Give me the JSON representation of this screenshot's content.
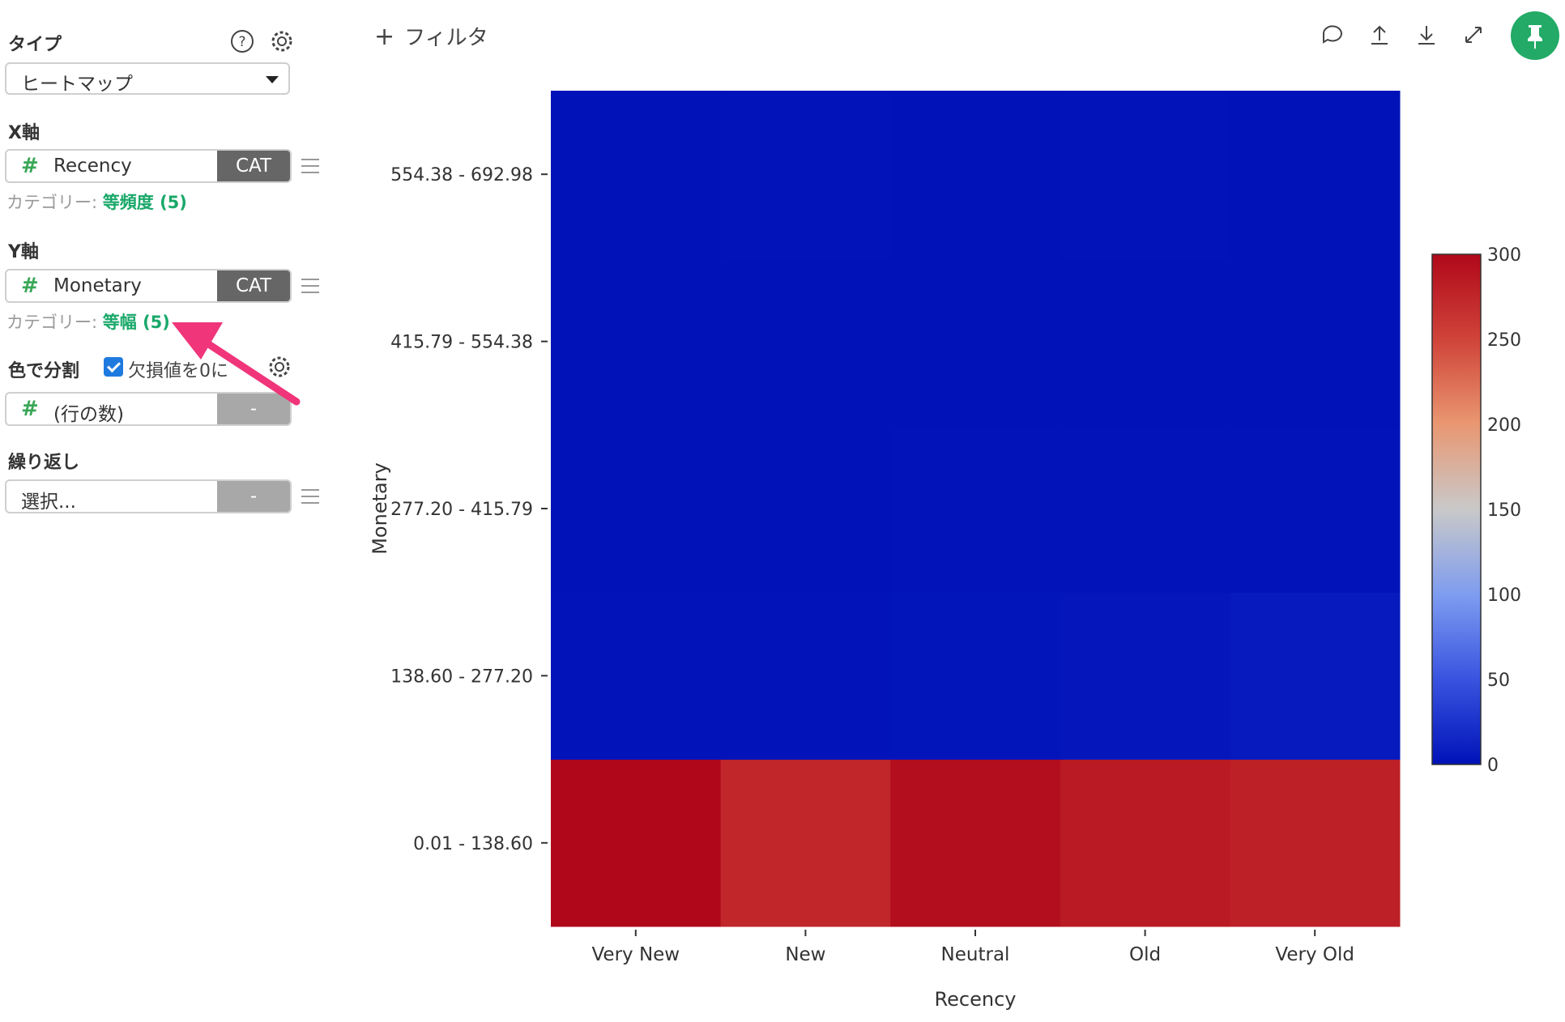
{
  "sidebar": {
    "type": {
      "label": "タイプ",
      "value": "ヒートマップ"
    },
    "x_axis": {
      "label": "X軸",
      "field": "Recency",
      "tag": "CAT",
      "category_prefix": "カテゴリー: ",
      "category_value": "等頻度 (5)"
    },
    "y_axis": {
      "label": "Y軸",
      "field": "Monetary",
      "tag": "CAT",
      "category_prefix": "カテゴリー: ",
      "category_value": "等幅 (5)"
    },
    "color": {
      "label": "色で分割",
      "checkbox_label": "欠損値を0に",
      "field": "(行の数)",
      "tag": "-"
    },
    "repeat": {
      "label": "繰り返し",
      "placeholder": "選択...",
      "tag": "-"
    }
  },
  "topbar": {
    "add_filter": "フィルタ"
  },
  "colors": {
    "green": "#22aa66",
    "accent_pink": "#f0357a"
  },
  "chart_data": {
    "type": "heatmap",
    "xlabel": "Recency",
    "ylabel": "Monetary",
    "x_categories": [
      "Very New",
      "New",
      "Neutral",
      "Old",
      "Very Old"
    ],
    "y_categories": [
      "0.01 - 138.60",
      "138.60 - 277.20",
      "277.20 - 415.79",
      "415.79 - 554.38",
      "554.38 - 692.98"
    ],
    "values": [
      [
        310,
        275,
        295,
        285,
        280
      ],
      [
        1,
        1,
        2,
        4,
        6
      ],
      [
        0,
        0,
        1,
        1,
        1
      ],
      [
        0,
        0,
        0,
        0,
        0
      ],
      [
        0,
        1,
        0,
        1,
        0
      ]
    ],
    "colorbar": {
      "min": 0,
      "max": 300,
      "ticks": [
        "0",
        "50",
        "100",
        "150",
        "200",
        "250",
        "300"
      ]
    }
  }
}
